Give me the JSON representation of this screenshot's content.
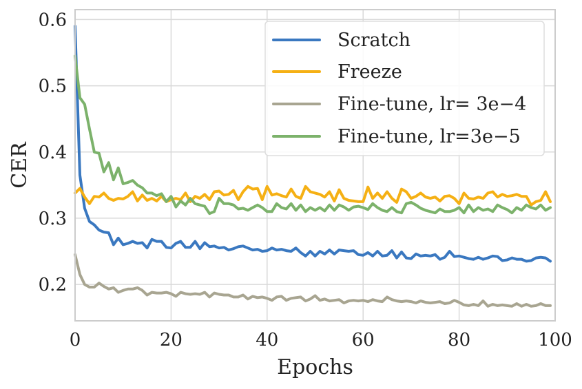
{
  "chart_data": {
    "type": "line",
    "title": "",
    "xlabel": "Epochs",
    "ylabel": "CER",
    "xlim": [
      0,
      100
    ],
    "ylim": [
      0.145,
      0.615
    ],
    "xticks": [
      0,
      20,
      40,
      60,
      80,
      100
    ],
    "xtick_labels": [
      "0",
      "20",
      "40",
      "60",
      "80",
      "100"
    ],
    "yticks": [
      0.2,
      0.3,
      0.4,
      0.5,
      0.6
    ],
    "ytick_labels": [
      "0.2",
      "0.3",
      "0.4",
      "0.5",
      "0.6"
    ],
    "grid": true,
    "legend_position": "top-right",
    "series": [
      {
        "name": "Scratch",
        "color": "#3a78c0",
        "values": [
          0.59,
          0.365,
          0.315,
          0.295,
          0.29,
          0.282,
          0.279,
          0.278,
          0.26,
          0.27,
          0.26,
          0.262,
          0.265,
          0.262,
          0.263,
          0.255,
          0.268,
          0.265,
          0.265,
          0.256,
          0.255,
          0.262,
          0.265,
          0.256,
          0.256,
          0.265,
          0.254,
          0.263,
          0.257,
          0.258,
          0.255,
          0.256,
          0.252,
          0.254,
          0.257,
          0.258,
          0.255,
          0.252,
          0.253,
          0.25,
          0.251,
          0.255,
          0.252,
          0.253,
          0.251,
          0.25,
          0.255,
          0.248,
          0.243,
          0.25,
          0.243,
          0.25,
          0.246,
          0.252,
          0.246,
          0.252,
          0.251,
          0.25,
          0.251,
          0.245,
          0.244,
          0.248,
          0.243,
          0.25,
          0.243,
          0.244,
          0.251,
          0.24,
          0.249,
          0.24,
          0.239,
          0.246,
          0.243,
          0.244,
          0.243,
          0.245,
          0.238,
          0.241,
          0.25,
          0.242,
          0.243,
          0.241,
          0.239,
          0.238,
          0.241,
          0.238,
          0.24,
          0.243,
          0.242,
          0.236,
          0.237,
          0.24,
          0.238,
          0.238,
          0.235,
          0.236,
          0.24,
          0.241,
          0.24,
          0.235
        ]
      },
      {
        "name": "Freeze",
        "color": "#f5b014",
        "values": [
          0.338,
          0.345,
          0.332,
          0.322,
          0.333,
          0.332,
          0.338,
          0.33,
          0.327,
          0.33,
          0.329,
          0.333,
          0.34,
          0.326,
          0.335,
          0.327,
          0.33,
          0.326,
          0.333,
          0.325,
          0.328,
          0.33,
          0.328,
          0.338,
          0.325,
          0.333,
          0.33,
          0.336,
          0.328,
          0.34,
          0.341,
          0.335,
          0.336,
          0.342,
          0.328,
          0.34,
          0.348,
          0.344,
          0.345,
          0.328,
          0.348,
          0.335,
          0.337,
          0.334,
          0.332,
          0.344,
          0.333,
          0.33,
          0.348,
          0.34,
          0.338,
          0.336,
          0.332,
          0.34,
          0.326,
          0.343,
          0.33,
          0.327,
          0.326,
          0.325,
          0.325,
          0.347,
          0.33,
          0.338,
          0.33,
          0.34,
          0.33,
          0.324,
          0.344,
          0.34,
          0.33,
          0.333,
          0.338,
          0.332,
          0.33,
          0.332,
          0.326,
          0.333,
          0.334,
          0.33,
          0.322,
          0.338,
          0.33,
          0.329,
          0.332,
          0.33,
          0.338,
          0.34,
          0.332,
          0.336,
          0.333,
          0.334,
          0.336,
          0.333,
          0.333,
          0.32,
          0.325,
          0.327,
          0.34,
          0.325
        ]
      },
      {
        "name": "Fine-tune, lr= 3e−4",
        "color": "#a8a591",
        "values": [
          0.245,
          0.215,
          0.2,
          0.196,
          0.196,
          0.202,
          0.197,
          0.193,
          0.195,
          0.188,
          0.191,
          0.193,
          0.193,
          0.195,
          0.191,
          0.184,
          0.188,
          0.187,
          0.187,
          0.188,
          0.186,
          0.182,
          0.188,
          0.186,
          0.185,
          0.186,
          0.185,
          0.188,
          0.181,
          0.187,
          0.185,
          0.184,
          0.184,
          0.181,
          0.181,
          0.184,
          0.178,
          0.182,
          0.18,
          0.181,
          0.179,
          0.176,
          0.181,
          0.182,
          0.176,
          0.179,
          0.18,
          0.181,
          0.175,
          0.178,
          0.183,
          0.176,
          0.178,
          0.175,
          0.176,
          0.177,
          0.172,
          0.175,
          0.176,
          0.175,
          0.176,
          0.174,
          0.177,
          0.175,
          0.174,
          0.181,
          0.177,
          0.175,
          0.174,
          0.175,
          0.174,
          0.172,
          0.175,
          0.173,
          0.172,
          0.173,
          0.174,
          0.171,
          0.172,
          0.176,
          0.173,
          0.169,
          0.168,
          0.17,
          0.168,
          0.175,
          0.167,
          0.17,
          0.168,
          0.169,
          0.168,
          0.167,
          0.171,
          0.167,
          0.17,
          0.167,
          0.168,
          0.171,
          0.168,
          0.168
        ]
      },
      {
        "name": "Fine-tune, lr=3e−5",
        "color": "#7cb26b",
        "values": [
          0.545,
          0.482,
          0.472,
          0.435,
          0.4,
          0.398,
          0.37,
          0.384,
          0.358,
          0.376,
          0.352,
          0.354,
          0.357,
          0.35,
          0.346,
          0.338,
          0.338,
          0.334,
          0.337,
          0.325,
          0.333,
          0.317,
          0.326,
          0.32,
          0.33,
          0.322,
          0.32,
          0.318,
          0.307,
          0.31,
          0.33,
          0.322,
          0.322,
          0.32,
          0.314,
          0.315,
          0.312,
          0.316,
          0.32,
          0.316,
          0.31,
          0.31,
          0.322,
          0.316,
          0.314,
          0.322,
          0.312,
          0.32,
          0.31,
          0.316,
          0.312,
          0.316,
          0.311,
          0.32,
          0.312,
          0.32,
          0.317,
          0.312,
          0.317,
          0.318,
          0.316,
          0.313,
          0.322,
          0.316,
          0.312,
          0.31,
          0.316,
          0.31,
          0.308,
          0.322,
          0.324,
          0.32,
          0.315,
          0.312,
          0.31,
          0.308,
          0.314,
          0.31,
          0.31,
          0.312,
          0.316,
          0.308,
          0.32,
          0.31,
          0.316,
          0.312,
          0.314,
          0.31,
          0.32,
          0.316,
          0.313,
          0.308,
          0.316,
          0.312,
          0.32,
          0.316,
          0.314,
          0.32,
          0.312,
          0.316
        ]
      }
    ]
  }
}
